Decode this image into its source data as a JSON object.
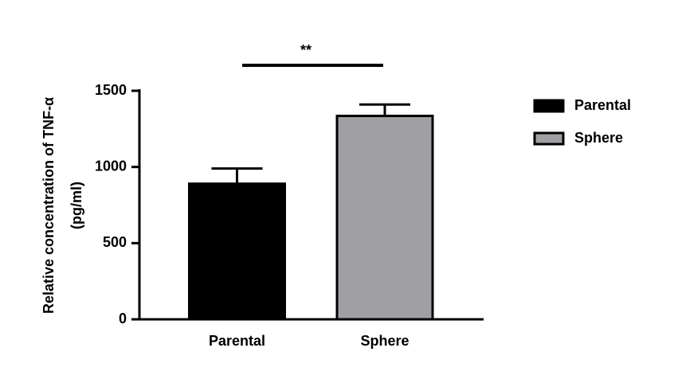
{
  "chart_data": {
    "type": "bar",
    "ylabel": [
      "Relative concentration of TNF-α",
      "(pg/ml)"
    ],
    "categories": [
      "Parental",
      "Sphere"
    ],
    "values": [
      890,
      1335
    ],
    "errors": [
      100,
      75
    ],
    "colors": [
      "#000000",
      "#a0a0a4"
    ],
    "ylim": [
      0,
      1500
    ],
    "yticks": [
      0,
      500,
      1000,
      1500
    ],
    "annotation": "**",
    "legend": "right"
  }
}
